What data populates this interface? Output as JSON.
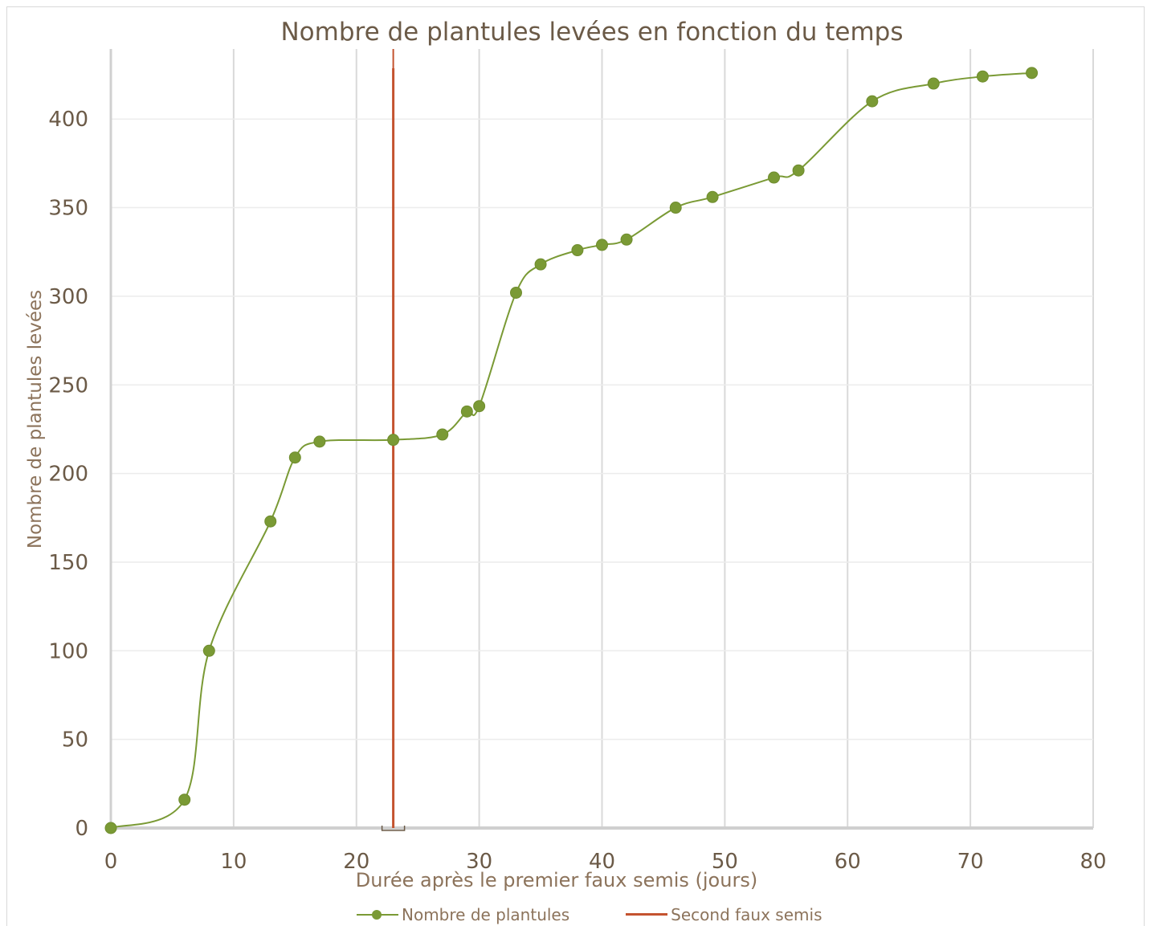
{
  "chart_data": {
    "type": "line",
    "title": "Nombre de plantules levées en fonction du temps",
    "xlabel": "Durée après le premier faux semis (jours)",
    "ylabel": "Nombre de plantules levées",
    "xlim": [
      0,
      80
    ],
    "ylim": [
      0,
      430
    ],
    "x_ticks": [
      0,
      10,
      20,
      30,
      40,
      50,
      60,
      70,
      80
    ],
    "y_ticks": [
      0,
      50,
      100,
      150,
      200,
      250,
      300,
      350,
      400
    ],
    "grid": "vertical and horizontal",
    "legend_position": "bottom",
    "series": [
      {
        "name": "Nombre de plantules",
        "color": "#7a9a35",
        "marker": "circle",
        "smooth": true,
        "x": [
          0,
          6,
          8,
          13,
          15,
          17,
          23,
          27,
          29,
          30,
          33,
          35,
          38,
          40,
          42,
          46,
          49,
          54,
          56,
          62,
          67,
          71,
          75
        ],
        "y": [
          0,
          16,
          100,
          173,
          209,
          218,
          219,
          222,
          235,
          238,
          302,
          318,
          326,
          329,
          332,
          350,
          356,
          367,
          371,
          410,
          420,
          424,
          426
        ]
      },
      {
        "name": "Second faux semis",
        "color": "#c4532f",
        "type": "vertical-line",
        "x": 23
      }
    ]
  }
}
